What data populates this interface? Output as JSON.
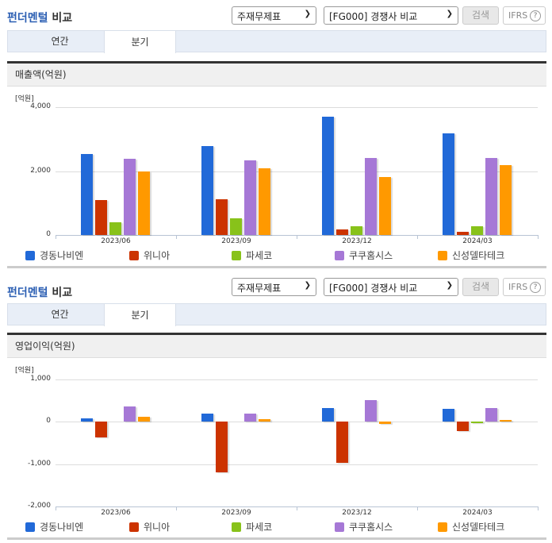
{
  "colors": {
    "경동나비엔": "#2169d8",
    "위니아": "#cc3300",
    "파세코": "#88c21a",
    "쿠쿠홈시스": "#a678d6",
    "신성델타테크": "#ff9900"
  },
  "panels": [
    {
      "header": {
        "title_accent": "펀더멘털",
        "title_rest": " 비교",
        "select_statement": "주재무제표",
        "select_group": "[FG000] 경쟁사 비교",
        "search_label": "검색",
        "ifrs_label": "IFRS",
        "help_icon": "?"
      },
      "tabs": [
        {
          "label": "연간",
          "active": false
        },
        {
          "label": "분기",
          "active": true
        }
      ],
      "metric_title": "매출액(억원)"
    },
    {
      "header": {
        "title_accent": "펀더멘털",
        "title_rest": " 비교",
        "select_statement": "주재무제표",
        "select_group": "[FG000] 경쟁사 비교",
        "search_label": "검색",
        "ifrs_label": "IFRS",
        "help_icon": "?"
      },
      "tabs": [
        {
          "label": "연간",
          "active": false
        },
        {
          "label": "분기",
          "active": true
        }
      ],
      "metric_title": "영업이익(억원)"
    }
  ],
  "chart_data": [
    {
      "type": "bar",
      "title": "매출액(억원)",
      "ylabel": "[억원]",
      "xlabel": "",
      "categories": [
        "2023/06",
        "2023/09",
        "2023/12",
        "2024/03"
      ],
      "ylim": [
        0,
        4000
      ],
      "yticks": [
        0,
        2000,
        4000
      ],
      "ytick_labels": [
        "0",
        "2,000",
        "4,000"
      ],
      "grid": true,
      "legend_position": "bottom",
      "series": [
        {
          "name": "경동나비엔",
          "values": [
            2530,
            2780,
            3700,
            3180
          ]
        },
        {
          "name": "위니아",
          "values": [
            1090,
            1120,
            170,
            100
          ]
        },
        {
          "name": "파세코",
          "values": [
            400,
            520,
            270,
            270
          ]
        },
        {
          "name": "쿠쿠홈시스",
          "values": [
            2390,
            2340,
            2410,
            2410
          ]
        },
        {
          "name": "신성델타테크",
          "values": [
            1990,
            2090,
            1810,
            2190
          ]
        }
      ]
    },
    {
      "type": "bar",
      "title": "영업이익(억원)",
      "ylabel": "[억원]",
      "xlabel": "",
      "categories": [
        "2023/06",
        "2023/09",
        "2023/12",
        "2024/03"
      ],
      "ylim": [
        -2000,
        1000
      ],
      "yticks": [
        -2000,
        -1000,
        0,
        1000
      ],
      "ytick_labels": [
        "-2,000",
        "-1,000",
        "0",
        "1,000"
      ],
      "grid": true,
      "legend_position": "bottom",
      "series": [
        {
          "name": "경동나비엔",
          "values": [
            90,
            200,
            320,
            300
          ]
        },
        {
          "name": "위니아",
          "values": [
            -370,
            -1190,
            -970,
            -220
          ]
        },
        {
          "name": "파세코",
          "values": [
            0,
            0,
            0,
            -40
          ]
        },
        {
          "name": "쿠쿠홈시스",
          "values": [
            370,
            200,
            520,
            320
          ]
        },
        {
          "name": "신성델타테크",
          "values": [
            110,
            70,
            -50,
            50
          ]
        }
      ]
    }
  ]
}
